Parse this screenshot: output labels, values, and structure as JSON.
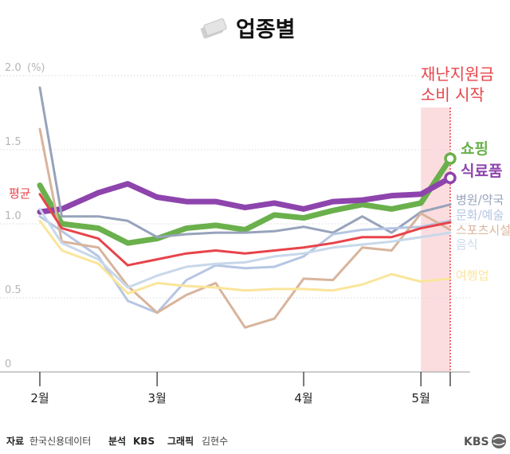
{
  "header": {
    "title": "업종별",
    "icon": "money-stack-icon"
  },
  "annotation": {
    "line1": "재난지원금",
    "line2": "소비 시작",
    "color": "#e8434a"
  },
  "footer": {
    "source_label": "자료",
    "source_value": "한국신용데이터",
    "analysis_label": "분석",
    "analysis_value": "KBS",
    "graphic_label": "그래픽",
    "graphic_value": "김현수",
    "logo_text": "KBS"
  },
  "chart_data": {
    "type": "line",
    "ylim": [
      0,
      2.0
    ],
    "y_ticks": [
      "0",
      "0.5",
      "1.0",
      "1.5",
      "2.0"
    ],
    "y_unit": "(%)",
    "x_ticks": [
      {
        "label": "2월",
        "x": 0
      },
      {
        "label": "3월",
        "x": 4
      },
      {
        "label": "4월",
        "x": 9
      },
      {
        "label": "5월",
        "x": 13
      },
      {
        "label": "",
        "x": 14
      }
    ],
    "highlight_range": [
      13,
      14
    ],
    "x": [
      0,
      0.75,
      2,
      3,
      4,
      5,
      6,
      7,
      8,
      9,
      10,
      11,
      12,
      13,
      14
    ],
    "series": [
      {
        "name": "쇼핑",
        "color": "#6ab04c",
        "width": 7,
        "label_bold": true,
        "end_marker": true,
        "values": [
          1.26,
          1.0,
          0.97,
          0.87,
          0.9,
          0.97,
          0.99,
          0.96,
          1.06,
          1.04,
          1.09,
          1.13,
          1.1,
          1.14,
          1.44
        ]
      },
      {
        "name": "식료품",
        "color": "#8e44ad",
        "width": 7,
        "label_bold": true,
        "end_marker": true,
        "values": [
          1.08,
          1.1,
          1.21,
          1.27,
          1.18,
          1.15,
          1.15,
          1.11,
          1.14,
          1.1,
          1.15,
          1.16,
          1.19,
          1.2,
          1.31
        ]
      },
      {
        "name": "병원/약국",
        "color": "#97a3bb",
        "width": 3,
        "values": [
          1.92,
          1.05,
          1.05,
          1.02,
          0.91,
          0.93,
          0.94,
          0.94,
          0.95,
          0.98,
          0.94,
          1.05,
          0.94,
          1.08,
          1.13
        ]
      },
      {
        "name": "문화/예술",
        "color": "#b6c6e3",
        "width": 3,
        "values": [
          1.05,
          0.95,
          0.78,
          0.48,
          0.4,
          0.62,
          0.72,
          0.7,
          0.71,
          0.78,
          0.93,
          0.96,
          0.97,
          0.98,
          1.02
        ]
      },
      {
        "name": "스포츠시설",
        "color": "#d8b49c",
        "width": 3,
        "values": [
          1.64,
          0.88,
          0.84,
          0.58,
          0.4,
          0.52,
          0.6,
          0.3,
          0.36,
          0.63,
          0.62,
          0.84,
          0.82,
          1.07,
          0.96
        ]
      },
      {
        "name": "음식",
        "color": "#c8d8ea",
        "width": 3,
        "values": [
          1.1,
          0.87,
          0.76,
          0.57,
          0.65,
          0.71,
          0.73,
          0.74,
          0.78,
          0.8,
          0.84,
          0.86,
          0.88,
          0.91,
          0.94
        ]
      },
      {
        "name": "여행업",
        "color": "#fae59b",
        "width": 3,
        "values": [
          1.02,
          0.82,
          0.73,
          0.53,
          0.6,
          0.58,
          0.57,
          0.55,
          0.56,
          0.56,
          0.55,
          0.59,
          0.66,
          0.61,
          0.63
        ]
      },
      {
        "name": "평균",
        "color": "#e8434a",
        "width": 3,
        "values": [
          1.2,
          0.97,
          0.9,
          0.72,
          0.76,
          0.8,
          0.82,
          0.8,
          0.82,
          0.84,
          0.87,
          0.91,
          0.91,
          0.97,
          1.01
        ]
      }
    ]
  }
}
